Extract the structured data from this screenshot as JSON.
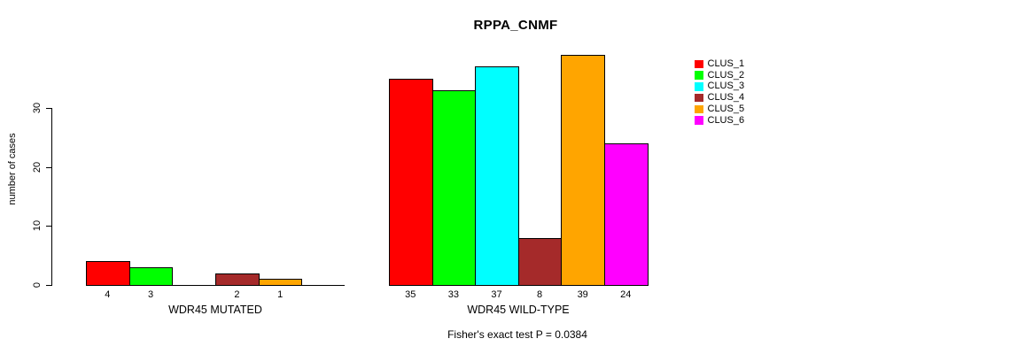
{
  "chart_data": {
    "type": "bar",
    "title": "RPPA_CNMF",
    "ylabel": "number of cases",
    "yticks": [
      0,
      10,
      20,
      30
    ],
    "ylim": [
      0,
      39
    ],
    "grid": false,
    "legend_position": "right",
    "series": [
      {
        "name": "CLUS_1",
        "color": "#FF0000"
      },
      {
        "name": "CLUS_2",
        "color": "#00FF00"
      },
      {
        "name": "CLUS_3",
        "color": "#00FFFF"
      },
      {
        "name": "CLUS_4",
        "color": "#A52A2A"
      },
      {
        "name": "CLUS_5",
        "color": "#FFA500"
      },
      {
        "name": "CLUS_6",
        "color": "#FF00FF"
      }
    ],
    "groups": [
      {
        "label": "WDR45 MUTATED",
        "values": [
          4,
          3,
          0,
          2,
          1,
          0
        ]
      },
      {
        "label": "WDR45 WILD-TYPE",
        "values": [
          35,
          33,
          37,
          8,
          39,
          24
        ]
      }
    ],
    "footnote": "Fisher's exact test P = 0.0384"
  }
}
